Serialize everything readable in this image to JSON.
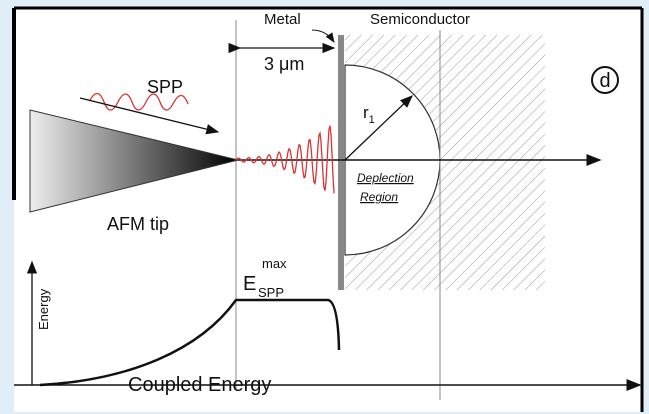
{
  "labels": {
    "metal": "Metal",
    "semiconductor": "Semiconductor",
    "width": "3 μm",
    "spp": "SPP",
    "radius": "r",
    "radius_sub": "1",
    "panel": "d",
    "depletion": "Deplection",
    "region": "Region",
    "tip": "AFM tip",
    "energy_axis": "Energy",
    "e_max": "E",
    "e_max_sup": "max",
    "e_max_sub": "SPP",
    "coupled": "Coupled Energy"
  }
}
